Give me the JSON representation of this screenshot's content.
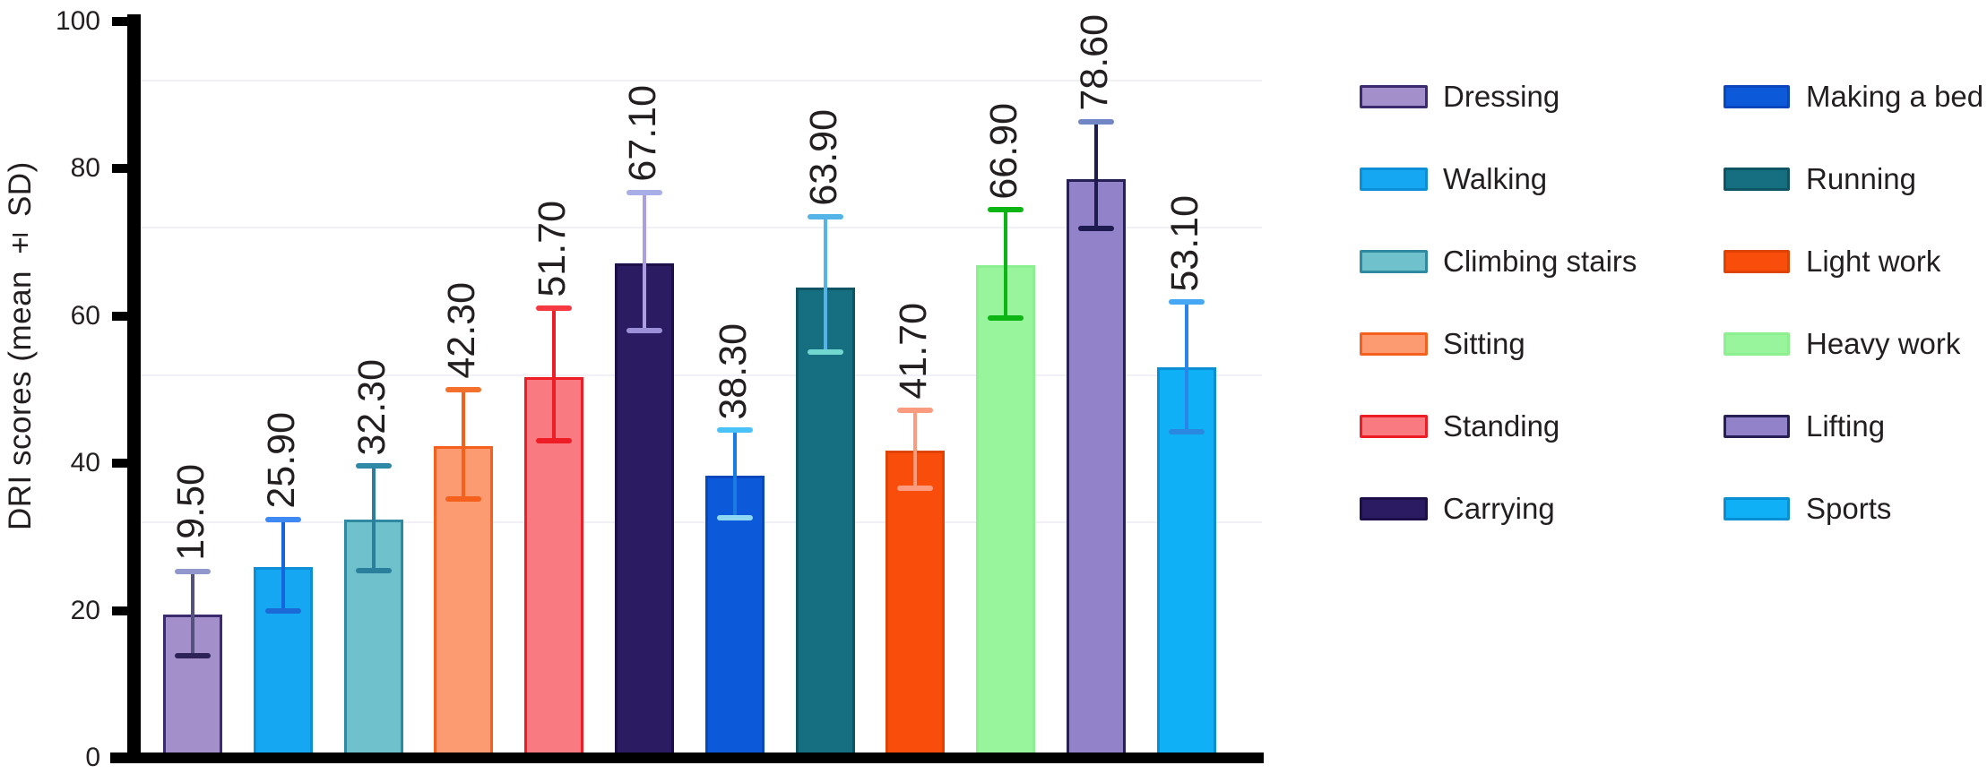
{
  "chart_data": {
    "type": "bar",
    "title": "",
    "xlabel": "",
    "ylabel": "DRI scores (mean ± SD)",
    "ylim": [
      0,
      100
    ],
    "yticks": [
      0,
      20,
      40,
      60,
      80,
      100
    ],
    "ytick_labels": [
      "0",
      "20",
      "40",
      "60",
      "80",
      "100"
    ],
    "grid": "faint horizontal minor lines",
    "legend_position": "right, two columns",
    "categories": [
      "Dressing",
      "Walking",
      "Climbing stairs",
      "Sitting",
      "Standing",
      "Carrying",
      "Making a bed",
      "Running",
      "Light work",
      "Heavy work",
      "Lifting",
      "Sports"
    ],
    "values": [
      19.5,
      25.9,
      32.3,
      42.3,
      51.7,
      67.1,
      38.3,
      63.9,
      41.7,
      66.9,
      78.6,
      53.1
    ],
    "value_labels": [
      "19.50",
      "25.90",
      "32.30",
      "42.30",
      "51.70",
      "67.10",
      "38.30",
      "63.90",
      "41.70",
      "66.90",
      "78.60",
      "53.10"
    ],
    "error_bar_top": [
      25.3,
      32.4,
      39.6,
      50.0,
      61.1,
      76.8,
      44.5,
      73.5,
      47.2,
      74.4,
      86.4,
      61.9
    ],
    "error_bar_bottom": [
      13.9,
      19.9,
      25.4,
      35.2,
      43.1,
      58.0,
      32.6,
      55.1,
      36.6,
      59.7,
      71.9,
      44.3
    ],
    "value_label_style": "rotated 90deg above error bar",
    "style": {
      "background": "#ffffff",
      "axis_color": "#000000",
      "text_color": "#231f20",
      "gridline_color": "#f1f0f6",
      "gridline_values": [
        32,
        52,
        72,
        92
      ],
      "bar_fill": [
        "#a38fc9",
        "#16a7f3",
        "#6fc2cc",
        "#fc9b72",
        "#f97a80",
        "#2a1b62",
        "#0c59da",
        "#156f80",
        "#f94e0b",
        "#98f59c",
        "#9282ca",
        "#10b0f6"
      ],
      "bar_border": [
        "#3c2a6e",
        "#0d8fd8",
        "#2d8aa0",
        "#f4601e",
        "#ee1c24",
        "#1d1048",
        "#0a46bc",
        "#0e5463",
        "#e04405",
        "#8cf090",
        "#262055",
        "#0b8fd4"
      ],
      "err_line": [
        "#55517e",
        "#1565dd",
        "#2a7f9c",
        "#f4611d",
        "#ee1c24",
        "#ab9fe2",
        "#1a7ce0",
        "#54b4e8",
        "#fb9c80",
        "#0cb414",
        "#1e1b50",
        "#2a84ea"
      ],
      "err_cap_top": [
        "#9097cc",
        "#3f8af2",
        "#2e89a6",
        "#f4702d",
        "#f43a40",
        "#a9aee8",
        "#48c2f8",
        "#54b4e8",
        "#fb9c80",
        "#0cb414",
        "#7186c5",
        "#46a8f5"
      ],
      "err_cap_bottom": [
        "#2c2258",
        "#1b6ad8",
        "#2a7f9c",
        "#f4611d",
        "#ee1c24",
        "#9b8fd8",
        "#8fd8f2",
        "#72d8cf",
        "#fb9c80",
        "#0cb414",
        "#1e1b50",
        "#2a88e0"
      ]
    }
  },
  "legend": {
    "columns": [
      [
        "Dressing",
        "Walking",
        "Climbing stairs",
        "Sitting",
        "Standing",
        "Carrying"
      ],
      [
        "Making a bed",
        "Running",
        "Light work",
        "Heavy work",
        "Lifting",
        "Sports"
      ]
    ]
  }
}
